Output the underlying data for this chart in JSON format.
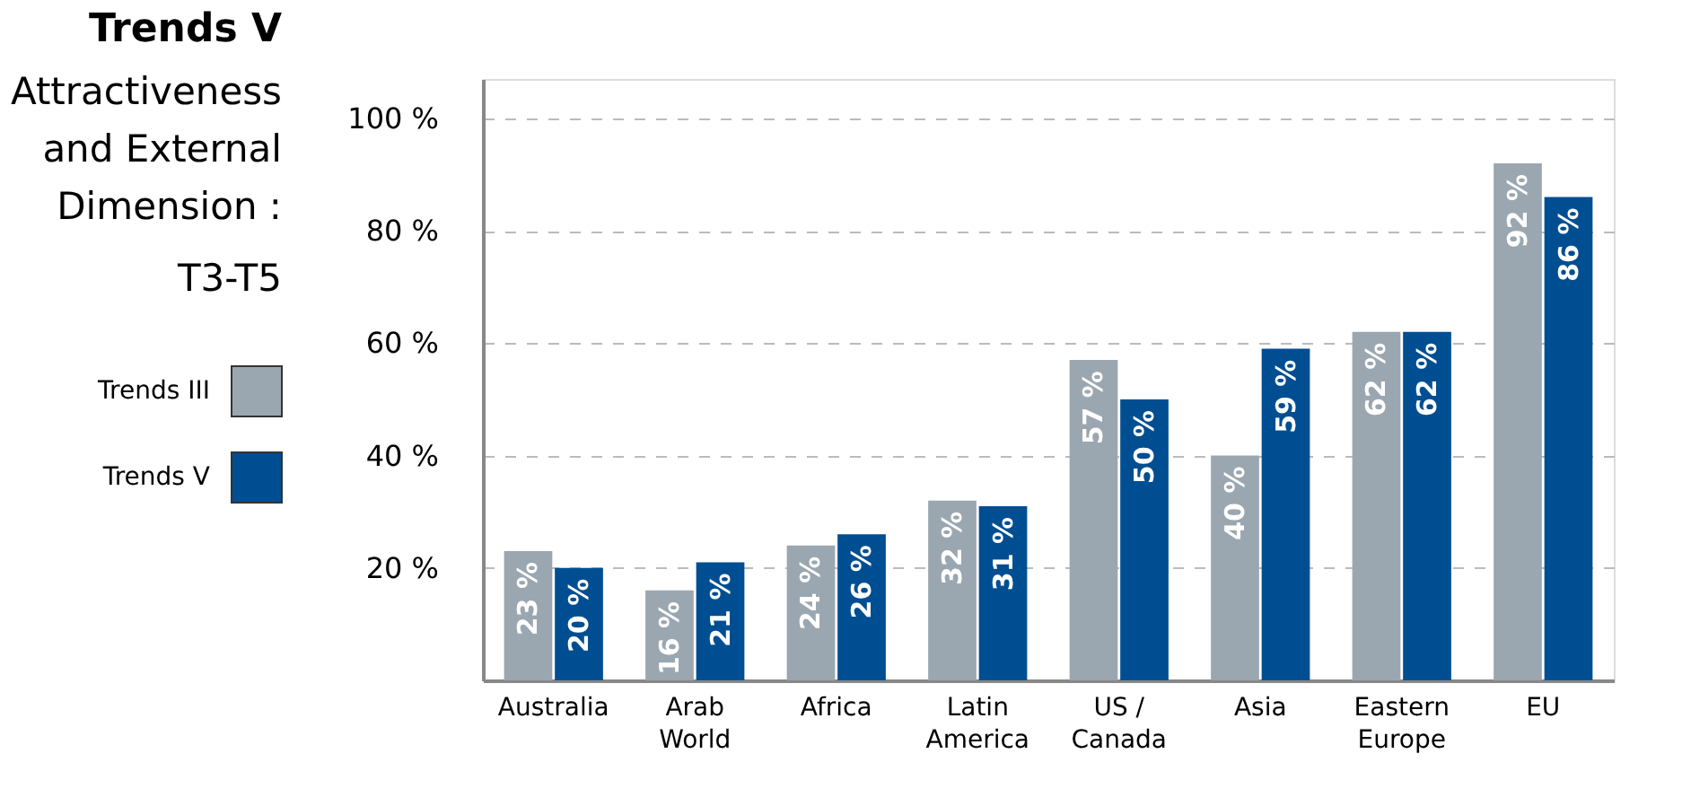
{
  "chart_data": {
    "type": "bar",
    "title": "Trends V",
    "subtitle": "Attractiveness\nand External\nDimension :\nT3-T5",
    "categories": [
      "Australia",
      "Arab\nWorld",
      "Africa",
      "Latin\nAmerica",
      "US /\nCanada",
      "Asia",
      "Eastern\nEurope",
      "EU"
    ],
    "series": [
      {
        "name": "Trends III",
        "color": "#9ba7b0",
        "values": [
          23,
          16,
          24,
          32,
          57,
          40,
          62,
          92
        ],
        "value_labels": [
          "23 %",
          "16 %",
          "24 %",
          "32 %",
          "57 %",
          "40 %",
          "62 %",
          "92 %"
        ]
      },
      {
        "name": "Trends V",
        "color": "#004e92",
        "values": [
          20,
          21,
          26,
          31,
          50,
          59,
          62,
          86
        ],
        "value_labels": [
          "20 %",
          "21 %",
          "26 %",
          "31 %",
          "50 %",
          "59 %",
          "62 %",
          "86 %"
        ]
      }
    ],
    "ylim": [
      0,
      107
    ],
    "yticks": [
      {
        "value": 20,
        "label": "20 %"
      },
      {
        "value": 40,
        "label": "40 %"
      },
      {
        "value": 60,
        "label": "60 %"
      },
      {
        "value": 80,
        "label": "80 %"
      },
      {
        "value": 100,
        "label": "100 %"
      }
    ],
    "grid": "y",
    "legend": "left"
  }
}
